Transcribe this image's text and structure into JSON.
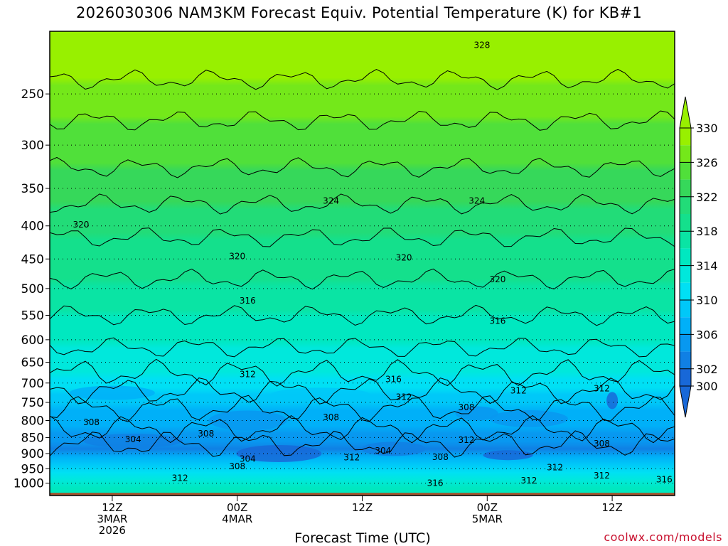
{
  "title": "2026030306 NAM3KM Forecast Equiv. Potential Temperature (K) for KB#1",
  "xlabel": "Forecast Time (UTC)",
  "credit": "coolwx.com/models",
  "chart_data": {
    "type": "heatmap",
    "title": "2026030306 NAM3KM Forecast Equiv. Potential Temperature (K) for KB#1",
    "xlabel": "Forecast Time (UTC)",
    "ylabel": "",
    "y_log": true,
    "y_reversed": true,
    "ylim": [
      1045,
      200
    ],
    "y_ticks": [
      250,
      300,
      350,
      400,
      450,
      500,
      550,
      600,
      650,
      700,
      750,
      800,
      850,
      900,
      950,
      1000
    ],
    "xlim": [
      0,
      60
    ],
    "x_ticks": [
      {
        "hour": 6,
        "lines": [
          "12Z",
          "3MAR",
          "2026"
        ]
      },
      {
        "hour": 18,
        "lines": [
          "00Z",
          "4MAR"
        ]
      },
      {
        "hour": 30,
        "lines": [
          "12Z"
        ]
      },
      {
        "hour": 42,
        "lines": [
          "00Z",
          "5MAR"
        ]
      },
      {
        "hour": 54,
        "lines": [
          "12Z"
        ]
      }
    ],
    "colorbar": {
      "ticks": [
        330,
        326,
        322,
        318,
        314,
        310,
        306,
        302,
        300
      ],
      "bins": [
        {
          "from": 328,
          "to": 332,
          "color": "#98f000"
        },
        {
          "from": 326,
          "to": 328,
          "color": "#74e81a"
        },
        {
          "from": 324,
          "to": 326,
          "color": "#50e03a"
        },
        {
          "from": 322,
          "to": 324,
          "color": "#36d85a"
        },
        {
          "from": 320,
          "to": 322,
          "color": "#22dc78"
        },
        {
          "from": 318,
          "to": 320,
          "color": "#14e08c"
        },
        {
          "from": 316,
          "to": 318,
          "color": "#0ae4a4"
        },
        {
          "from": 314,
          "to": 316,
          "color": "#00e8c0"
        },
        {
          "from": 312,
          "to": 314,
          "color": "#00e8dc"
        },
        {
          "from": 310,
          "to": 312,
          "color": "#00e0f4"
        },
        {
          "from": 308,
          "to": 310,
          "color": "#00c8f8"
        },
        {
          "from": 306,
          "to": 308,
          "color": "#00b0f8"
        },
        {
          "from": 304,
          "to": 306,
          "color": "#0898f0"
        },
        {
          "from": 302,
          "to": 304,
          "color": "#1080e4"
        },
        {
          "from": 300,
          "to": 302,
          "color": "#1868d8"
        }
      ]
    },
    "profile": [
      {
        "p": 200,
        "theta": 331
      },
      {
        "p": 250,
        "theta": 327
      },
      {
        "p": 300,
        "theta": 325
      },
      {
        "p": 350,
        "theta": 323
      },
      {
        "p": 400,
        "theta": 320.5
      },
      {
        "p": 450,
        "theta": 319
      },
      {
        "p": 500,
        "theta": 317.5
      },
      {
        "p": 550,
        "theta": 316
      },
      {
        "p": 600,
        "theta": 314.5
      },
      {
        "p": 650,
        "theta": 313
      },
      {
        "p": 700,
        "theta": 311
      },
      {
        "p": 750,
        "theta": 308.5
      },
      {
        "p": 800,
        "theta": 307
      },
      {
        "p": 850,
        "theta": 305
      },
      {
        "p": 880,
        "theta": 303.5
      },
      {
        "p": 900,
        "theta": 305
      },
      {
        "p": 950,
        "theta": 310
      },
      {
        "p": 1000,
        "theta": 314
      },
      {
        "p": 1045,
        "theta": 315
      }
    ],
    "contour_labels": [
      {
        "text": "328",
        "x": 41.5,
        "p": 210
      },
      {
        "text": "324",
        "x": 27.0,
        "p": 366
      },
      {
        "text": "324",
        "x": 41.0,
        "p": 366
      },
      {
        "text": "320",
        "x": 3.0,
        "p": 398
      },
      {
        "text": "320",
        "x": 18.0,
        "p": 446
      },
      {
        "text": "320",
        "x": 34.0,
        "p": 448
      },
      {
        "text": "320",
        "x": 43.0,
        "p": 484
      },
      {
        "text": "316",
        "x": 19.0,
        "p": 522
      },
      {
        "text": "316",
        "x": 43.0,
        "p": 561
      },
      {
        "text": "312",
        "x": 19.0,
        "p": 679
      },
      {
        "text": "316",
        "x": 33.0,
        "p": 691
      },
      {
        "text": "312",
        "x": 34.0,
        "p": 736
      },
      {
        "text": "312",
        "x": 45.0,
        "p": 719
      },
      {
        "text": "312",
        "x": 53.0,
        "p": 714
      },
      {
        "text": "308",
        "x": 4.0,
        "p": 805
      },
      {
        "text": "304",
        "x": 8.0,
        "p": 856
      },
      {
        "text": "308",
        "x": 15.0,
        "p": 838
      },
      {
        "text": "308",
        "x": 27.0,
        "p": 791
      },
      {
        "text": "308",
        "x": 40.0,
        "p": 763
      },
      {
        "text": "312",
        "x": 40.0,
        "p": 858
      },
      {
        "text": "304",
        "x": 19.0,
        "p": 917
      },
      {
        "text": "308",
        "x": 18.0,
        "p": 942
      },
      {
        "text": "312",
        "x": 29.0,
        "p": 913
      },
      {
        "text": "304",
        "x": 32.0,
        "p": 891
      },
      {
        "text": "308",
        "x": 37.5,
        "p": 912
      },
      {
        "text": "308",
        "x": 53.0,
        "p": 869
      },
      {
        "text": "312",
        "x": 12.5,
        "p": 982
      },
      {
        "text": "316",
        "x": 37.0,
        "p": 1000
      },
      {
        "text": "312",
        "x": 46.0,
        "p": 991
      },
      {
        "text": "312",
        "x": 48.5,
        "p": 945
      },
      {
        "text": "312",
        "x": 53.0,
        "p": 974
      },
      {
        "text": "316",
        "x": 59.0,
        "p": 987
      }
    ]
  }
}
